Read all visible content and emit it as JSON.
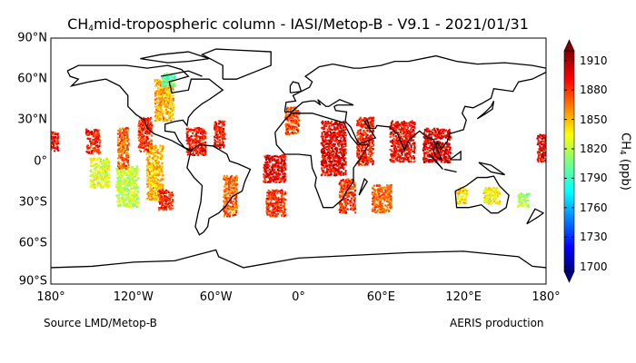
{
  "chart_data": {
    "type": "map",
    "title_prefix": "CH",
    "title_sub": "4",
    "title_rest": " mid-tropospheric column - IASI/Metop-B - V9.1 - 2021/01/31",
    "lat_ticks": [
      "90°N",
      "60°N",
      "30°N",
      "0°",
      "30°S",
      "60°S",
      "90°S"
    ],
    "lat_values": [
      90,
      60,
      30,
      0,
      -30,
      -60,
      -90
    ],
    "lon_ticks": [
      "180°",
      "120°W",
      "60°W",
      "0°",
      "60°E",
      "120°E",
      "180°"
    ],
    "lon_values": [
      -180,
      -120,
      -60,
      0,
      60,
      120,
      180
    ],
    "colorbar": {
      "label_prefix": "CH",
      "label_sub": "4",
      "label_rest": " (ppb)",
      "ticks": [
        "1910",
        "1880",
        "1850",
        "1820",
        "1790",
        "1760",
        "1730",
        "1700"
      ],
      "tick_values": [
        1910,
        1880,
        1850,
        1820,
        1790,
        1760,
        1730,
        1700
      ],
      "range": [
        1695,
        1920
      ],
      "colormap": "jet"
    },
    "observation_clusters": [
      {
        "lon": -178,
        "lat": 15,
        "w": 6,
        "h": 14,
        "v": 1890
      },
      {
        "lon": -150,
        "lat": 15,
        "w": 10,
        "h": 18,
        "v": 1888
      },
      {
        "lon": -145,
        "lat": -8,
        "w": 14,
        "h": 22,
        "v": 1830
      },
      {
        "lon": -125,
        "lat": -18,
        "w": 16,
        "h": 30,
        "v": 1822
      },
      {
        "lon": -128,
        "lat": 10,
        "w": 8,
        "h": 30,
        "v": 1870
      },
      {
        "lon": -105,
        "lat": -8,
        "w": 12,
        "h": 40,
        "v": 1850
      },
      {
        "lon": -97,
        "lat": -28,
        "w": 10,
        "h": 15,
        "v": 1885
      },
      {
        "lon": -112,
        "lat": 20,
        "w": 10,
        "h": 25,
        "v": 1882
      },
      {
        "lon": -98,
        "lat": 45,
        "w": 14,
        "h": 30,
        "v": 1855
      },
      {
        "lon": -75,
        "lat": 15,
        "w": 14,
        "h": 20,
        "v": 1888
      },
      {
        "lon": -58,
        "lat": 20,
        "w": 8,
        "h": 20,
        "v": 1892
      },
      {
        "lon": -50,
        "lat": -25,
        "w": 10,
        "h": 30,
        "v": 1870
      },
      {
        "lon": -18,
        "lat": -5,
        "w": 16,
        "h": 20,
        "v": 1895
      },
      {
        "lon": -17,
        "lat": -30,
        "w": 14,
        "h": 20,
        "v": 1882
      },
      {
        "lon": -5,
        "lat": 30,
        "w": 10,
        "h": 20,
        "v": 1880
      },
      {
        "lon": 25,
        "lat": 10,
        "w": 18,
        "h": 40,
        "v": 1895
      },
      {
        "lon": 35,
        "lat": -25,
        "w": 12,
        "h": 25,
        "v": 1880
      },
      {
        "lon": 48,
        "lat": 15,
        "w": 12,
        "h": 35,
        "v": 1885
      },
      {
        "lon": 60,
        "lat": -27,
        "w": 14,
        "h": 20,
        "v": 1870
      },
      {
        "lon": 75,
        "lat": 15,
        "w": 18,
        "h": 30,
        "v": 1893
      },
      {
        "lon": 100,
        "lat": 12,
        "w": 20,
        "h": 25,
        "v": 1898
      },
      {
        "lon": 118,
        "lat": -25,
        "w": 8,
        "h": 12,
        "v": 1845
      },
      {
        "lon": 140,
        "lat": -25,
        "w": 12,
        "h": 12,
        "v": 1840
      },
      {
        "lon": 163,
        "lat": -28,
        "w": 8,
        "h": 10,
        "v": 1815
      },
      {
        "lon": 177,
        "lat": 10,
        "w": 8,
        "h": 20,
        "v": 1895
      },
      {
        "lon": -95,
        "lat": 60,
        "w": 10,
        "h": 10,
        "v": 1800
      }
    ]
  },
  "footer": {
    "source": "Source LMD/Metop-B",
    "production": "AERIS production"
  }
}
